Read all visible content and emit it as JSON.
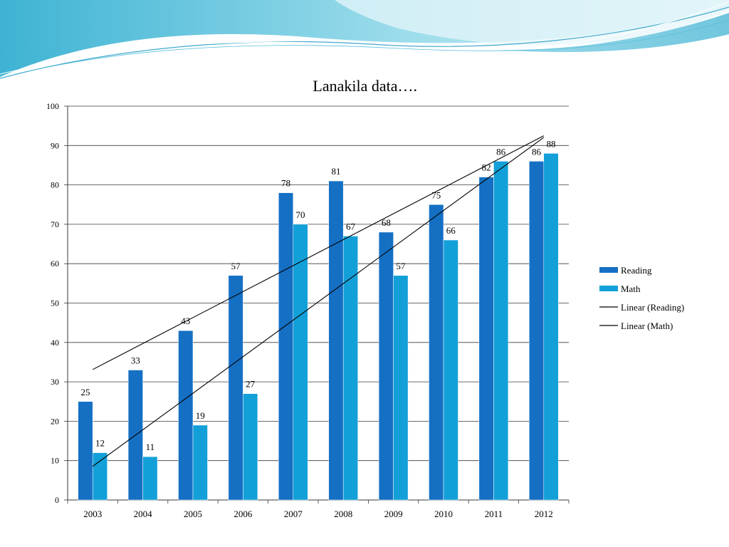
{
  "chart_data": {
    "type": "bar",
    "title": "Lanakila data….",
    "categories": [
      "2003",
      "2004",
      "2005",
      "2006",
      "2007",
      "2008",
      "2009",
      "2010",
      "2011",
      "2012"
    ],
    "series": [
      {
        "name": "Reading",
        "color": "#1570C4",
        "values": [
          25,
          33,
          43,
          57,
          78,
          81,
          68,
          75,
          82,
          86
        ]
      },
      {
        "name": "Math",
        "color": "#13A0D9",
        "values": [
          12,
          11,
          19,
          27,
          70,
          67,
          57,
          66,
          86,
          88
        ]
      }
    ],
    "trendlines": [
      {
        "name": "Linear (Reading)",
        "series": "Reading",
        "color": "#000000"
      },
      {
        "name": "Linear (Math)",
        "series": "Math",
        "color": "#000000"
      }
    ],
    "y_ticks": [
      "0",
      "10",
      "20",
      "30",
      "40",
      "50",
      "60",
      "70",
      "80",
      "90",
      "100"
    ],
    "ylim": [
      0,
      100
    ],
    "grid": true,
    "legend_position": "right"
  }
}
